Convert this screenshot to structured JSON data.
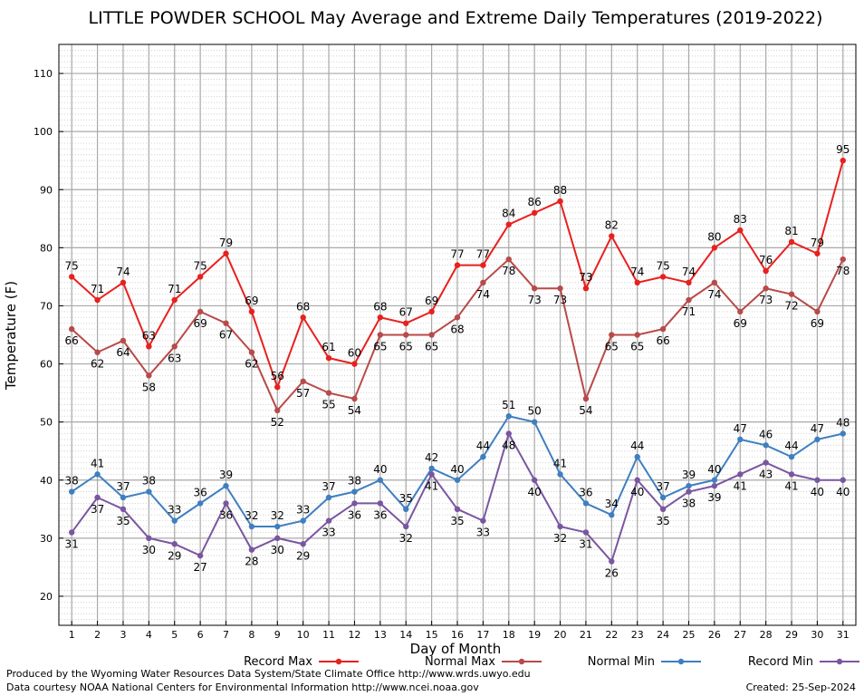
{
  "chart_data": {
    "type": "line",
    "title": "LITTLE POWDER SCHOOL May Average and Extreme Daily Temperatures (2019-2022)",
    "xlabel": "Day of Month",
    "ylabel": "Temperature (F)",
    "x": [
      1,
      2,
      3,
      4,
      5,
      6,
      7,
      8,
      9,
      10,
      11,
      12,
      13,
      14,
      15,
      16,
      17,
      18,
      19,
      20,
      21,
      22,
      23,
      24,
      25,
      26,
      27,
      28,
      29,
      30,
      31
    ],
    "xlim": [
      0.5,
      31.5
    ],
    "ylim": [
      15,
      115
    ],
    "yticks": [
      20,
      30,
      40,
      50,
      60,
      70,
      80,
      90,
      100,
      110
    ],
    "grid": true,
    "legend_position": "bottom",
    "series": [
      {
        "name": "Record Max",
        "color": "#e8201e",
        "labels": "above",
        "values": [
          75,
          71,
          74,
          63,
          71,
          75,
          79,
          69,
          56,
          68,
          61,
          60,
          68,
          67,
          69,
          77,
          77,
          84,
          86,
          88,
          73,
          82,
          74,
          75,
          74,
          80,
          83,
          76,
          81,
          79,
          95
        ]
      },
      {
        "name": "Normal Max",
        "color": "#b84a4a",
        "labels": "below",
        "values": [
          66,
          62,
          64,
          58,
          63,
          69,
          67,
          62,
          52,
          57,
          55,
          54,
          65,
          65,
          65,
          68,
          74,
          78,
          73,
          73,
          54,
          65,
          65,
          66,
          71,
          74,
          69,
          73,
          72,
          69,
          78
        ]
      },
      {
        "name": "Normal Min",
        "color": "#3f7fbf",
        "labels": "above",
        "values": [
          38,
          41,
          37,
          38,
          33,
          36,
          39,
          32,
          32,
          33,
          37,
          38,
          40,
          35,
          42,
          40,
          44,
          51,
          50,
          41,
          36,
          34,
          44,
          37,
          39,
          40,
          47,
          46,
          44,
          47,
          48
        ]
      },
      {
        "name": "Record Min",
        "color": "#7a56a0",
        "labels": "below",
        "values": [
          31,
          37,
          35,
          30,
          29,
          27,
          36,
          28,
          30,
          29,
          33,
          36,
          36,
          32,
          41,
          35,
          33,
          48,
          40,
          32,
          31,
          26,
          40,
          35,
          38,
          39,
          41,
          43,
          41,
          40,
          40
        ]
      }
    ]
  },
  "footer": {
    "produced_by": "Produced by the Wyoming Water Resources Data System/State Climate Office http://www.wrds.uwyo.edu",
    "data_courtesy": "Data courtesy NOAA National Centers for Environmental Information http://www.ncei.noaa.gov",
    "created": "Created: 25-Sep-2024"
  }
}
